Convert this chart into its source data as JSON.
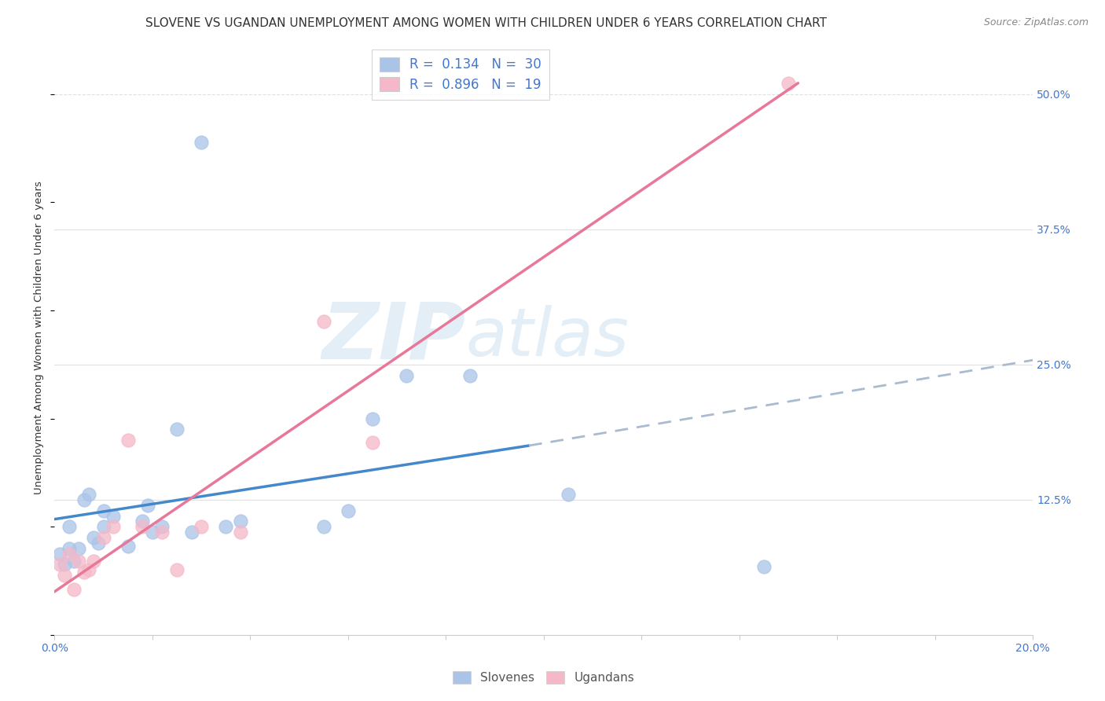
{
  "title": "SLOVENE VS UGANDAN UNEMPLOYMENT AMONG WOMEN WITH CHILDREN UNDER 6 YEARS CORRELATION CHART",
  "source": "Source: ZipAtlas.com",
  "ylabel": "Unemployment Among Women with Children Under 6 years",
  "xlim": [
    0.0,
    0.2
  ],
  "ylim": [
    0.0,
    0.55
  ],
  "xticks": [
    0.0,
    0.02,
    0.04,
    0.06,
    0.08,
    0.1,
    0.12,
    0.14,
    0.16,
    0.18,
    0.2
  ],
  "yticks_right": [
    0.0,
    0.125,
    0.25,
    0.375,
    0.5
  ],
  "ytick_right_labels": [
    "",
    "12.5%",
    "25.0%",
    "37.5%",
    "50.0%"
  ],
  "background_color": "#ffffff",
  "grid_color": "#e0e0e0",
  "slovene_color": "#aac4e8",
  "ugandan_color": "#f5b8c8",
  "slovene_line_color": "#4488cc",
  "ugandan_line_color": "#e8789a",
  "dashed_line_color": "#aabbd0",
  "R_slovene": 0.134,
  "N_slovene": 30,
  "R_ugandan": 0.896,
  "N_ugandan": 19,
  "slovenes_x": [
    0.001,
    0.002,
    0.003,
    0.003,
    0.004,
    0.005,
    0.006,
    0.007,
    0.008,
    0.009,
    0.01,
    0.01,
    0.012,
    0.015,
    0.018,
    0.019,
    0.02,
    0.022,
    0.025,
    0.028,
    0.035,
    0.038,
    0.055,
    0.06,
    0.065,
    0.072,
    0.085,
    0.105,
    0.145,
    0.03
  ],
  "slovenes_y": [
    0.075,
    0.065,
    0.08,
    0.1,
    0.068,
    0.08,
    0.125,
    0.13,
    0.09,
    0.085,
    0.1,
    0.115,
    0.11,
    0.082,
    0.105,
    0.12,
    0.095,
    0.1,
    0.19,
    0.095,
    0.1,
    0.105,
    0.1,
    0.115,
    0.2,
    0.24,
    0.24,
    0.13,
    0.063,
    0.455
  ],
  "ugandans_x": [
    0.001,
    0.002,
    0.003,
    0.004,
    0.005,
    0.006,
    0.007,
    0.008,
    0.01,
    0.012,
    0.015,
    0.018,
    0.022,
    0.025,
    0.03,
    0.038,
    0.055,
    0.065,
    0.15
  ],
  "ugandans_y": [
    0.065,
    0.055,
    0.075,
    0.042,
    0.068,
    0.058,
    0.06,
    0.068,
    0.09,
    0.1,
    0.18,
    0.1,
    0.095,
    0.06,
    0.1,
    0.095,
    0.29,
    0.178,
    0.51
  ],
  "slovene_trend_x": [
    0.0,
    0.097
  ],
  "slovene_trend_y": [
    0.107,
    0.175
  ],
  "dashed_trend_x": [
    0.097,
    0.2
  ],
  "dashed_trend_y": [
    0.175,
    0.254
  ],
  "ugandan_trend_x": [
    0.0,
    0.152
  ],
  "ugandan_trend_y": [
    0.04,
    0.51
  ],
  "watermark_zip": "ZIP",
  "watermark_atlas": "atlas",
  "title_fontsize": 11,
  "axis_label_fontsize": 9.5,
  "tick_fontsize": 10,
  "legend_fontsize": 12
}
